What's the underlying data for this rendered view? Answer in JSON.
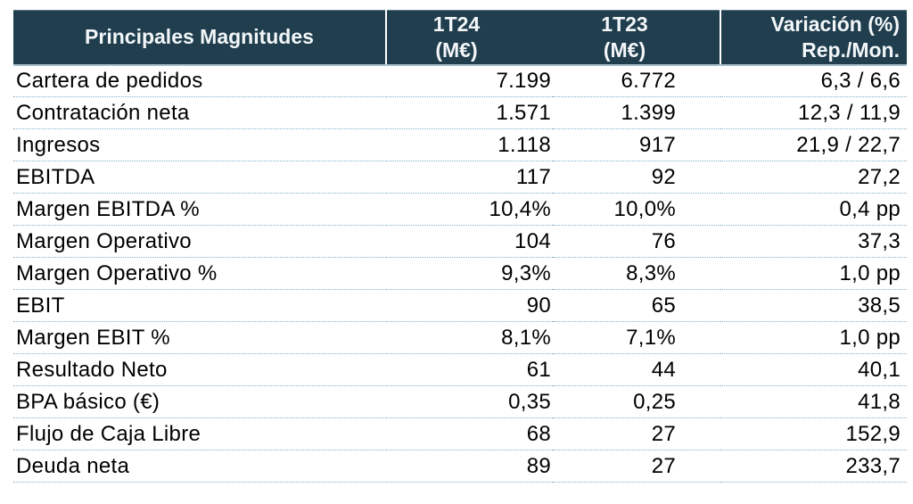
{
  "colors": {
    "header_bg": "#203e4e",
    "header_text": "#f2f6f8",
    "row_line": "#85afc6",
    "header_underline": "#a7c0cd",
    "body_text": "#000000",
    "page_bg": "#ffffff"
  },
  "header": {
    "col1": "Principales Magnitudes",
    "col2_line1": "1T24",
    "col2_line2": "(M€)",
    "col3_line1": "1T23",
    "col3_line2": "(M€)",
    "col4_line1": "Variación (%)",
    "col4_line2": "Rep./Mon."
  },
  "chart_data": {
    "type": "table",
    "title": "Principales Magnitudes",
    "columns": [
      "Principales Magnitudes",
      "1T24 (M€)",
      "1T23 (M€)",
      "Variación (%) Rep./Mon."
    ],
    "rows": [
      {
        "label": "Cartera de pedidos",
        "t24": "7.199",
        "t23": "6.772",
        "var": "6,3 / 6,6"
      },
      {
        "label": "Contratación neta",
        "t24": "1.571",
        "t23": "1.399",
        "var": "12,3 / 11,9"
      },
      {
        "label": "Ingresos",
        "t24": "1.118",
        "t23": "917",
        "var": "21,9 / 22,7"
      },
      {
        "label": "EBITDA",
        "t24": "117",
        "t23": "92",
        "var": "27,2"
      },
      {
        "label": "Margen EBITDA %",
        "t24": "10,4%",
        "t23": "10,0%",
        "var": "0,4 pp"
      },
      {
        "label": "Margen Operativo",
        "t24": "104",
        "t23": "76",
        "var": "37,3"
      },
      {
        "label": "Margen Operativo %",
        "t24": "9,3%",
        "t23": "8,3%",
        "var": "1,0 pp"
      },
      {
        "label": "EBIT",
        "t24": "90",
        "t23": "65",
        "var": "38,5"
      },
      {
        "label": "Margen EBIT %",
        "t24": "8,1%",
        "t23": "7,1%",
        "var": "1,0 pp"
      },
      {
        "label": "Resultado Neto",
        "t24": "61",
        "t23": "44",
        "var": "40,1"
      },
      {
        "label": "BPA básico (€)",
        "t24": "0,35",
        "t23": "0,25",
        "var": "41,8"
      },
      {
        "label": "Flujo de Caja Libre",
        "t24": "68",
        "t23": "27",
        "var": "152,9"
      },
      {
        "label": "Deuda neta",
        "t24": "89",
        "t23": "27",
        "var": "233,7"
      }
    ]
  }
}
